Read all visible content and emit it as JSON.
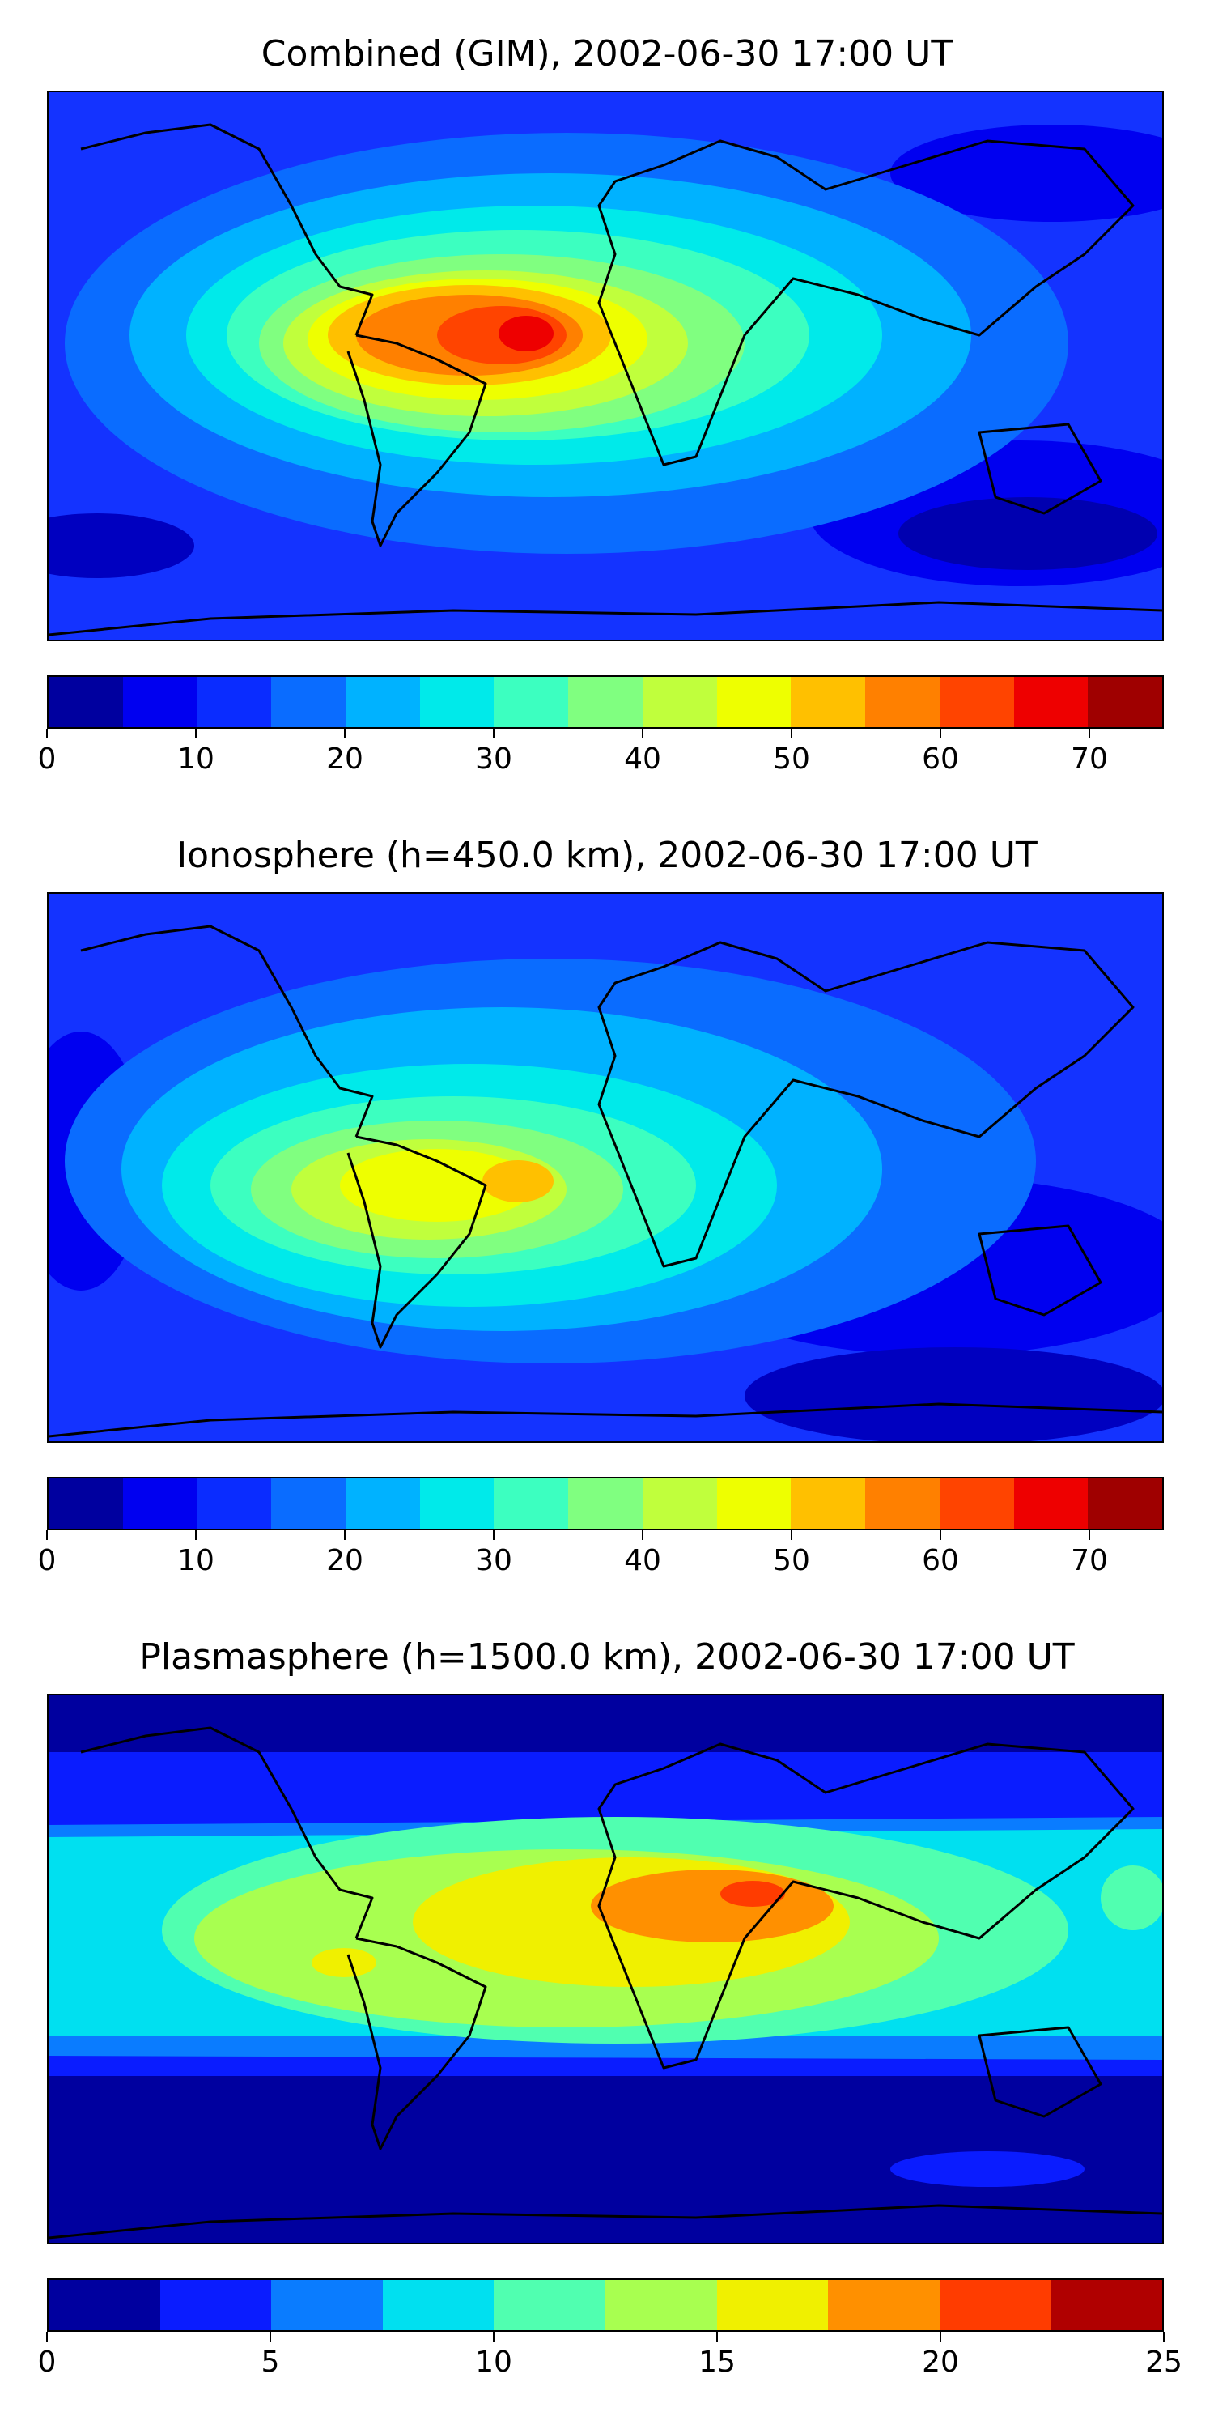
{
  "panels": [
    {
      "title": "Combined (GIM), 2002-06-30 17:00 UT",
      "colorbar": {
        "min": 0,
        "max": 75,
        "step": 5,
        "ticks": [
          "0",
          "10",
          "20",
          "30",
          "40",
          "50",
          "60",
          "70"
        ],
        "tick_values": [
          0,
          10,
          20,
          30,
          40,
          50,
          60,
          70
        ],
        "colors": [
          "#00009f",
          "#0000f0",
          "#0a2cff",
          "#0a6cff",
          "#00b2ff",
          "#00eaea",
          "#3cffc0",
          "#80ff80",
          "#c0ff3c",
          "#eeff00",
          "#ffc000",
          "#ff8000",
          "#ff4400",
          "#ee0000",
          "#9f0000"
        ]
      }
    },
    {
      "title": "Ionosphere  (h=450.0 km), 2002-06-30 17:00 UT",
      "colorbar": {
        "min": 0,
        "max": 75,
        "step": 5,
        "ticks": [
          "0",
          "10",
          "20",
          "30",
          "40",
          "50",
          "60",
          "70"
        ],
        "tick_values": [
          0,
          10,
          20,
          30,
          40,
          50,
          60,
          70
        ],
        "colors": [
          "#00009f",
          "#0000f0",
          "#0a2cff",
          "#0a6cff",
          "#00b2ff",
          "#00eaea",
          "#3cffc0",
          "#80ff80",
          "#c0ff3c",
          "#eeff00",
          "#ffc000",
          "#ff8000",
          "#ff4400",
          "#ee0000",
          "#9f0000"
        ]
      }
    },
    {
      "title": "Plasmasphere (h=1500.0 km), 2002-06-30 17:00 UT",
      "colorbar": {
        "min": 0,
        "max": 25,
        "step": 2.5,
        "ticks": [
          "0",
          "5",
          "10",
          "15",
          "20",
          "25"
        ],
        "tick_values": [
          0,
          5,
          10,
          15,
          20,
          25
        ],
        "colors": [
          "#00009f",
          "#0a1cff",
          "#0a7cff",
          "#00e0f0",
          "#50ffb0",
          "#a8ff50",
          "#f0f000",
          "#ff9000",
          "#ff3c00",
          "#b00000"
        ]
      }
    }
  ]
}
